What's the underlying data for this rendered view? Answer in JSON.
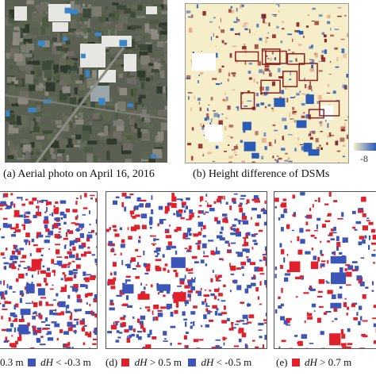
{
  "colors": {
    "increase": "#e0202a",
    "decrease": "#3b55b8",
    "diff_low": "#2a5bb5",
    "diff_mid": "#f6eec8",
    "diff_high": "#8b1f22"
  },
  "panels": {
    "a": {
      "caption": "(a) Aerial photo on April 16, 2016"
    },
    "b": {
      "caption": "(b) Height difference of DSMs",
      "colorbar_tick": "-8"
    },
    "c": {
      "legend": {
        "pos_value": "0.3 m",
        "var": "dH",
        "lt": "< -0.3 m"
      }
    },
    "d": {
      "legend": {
        "label": "(d)",
        "var": "dH",
        "gt": "> 0.5 m",
        "lt": "< -0.5 m"
      }
    },
    "e": {
      "legend": {
        "label": "(e)",
        "var": "dH",
        "gt": "> 0.7 m"
      }
    }
  }
}
